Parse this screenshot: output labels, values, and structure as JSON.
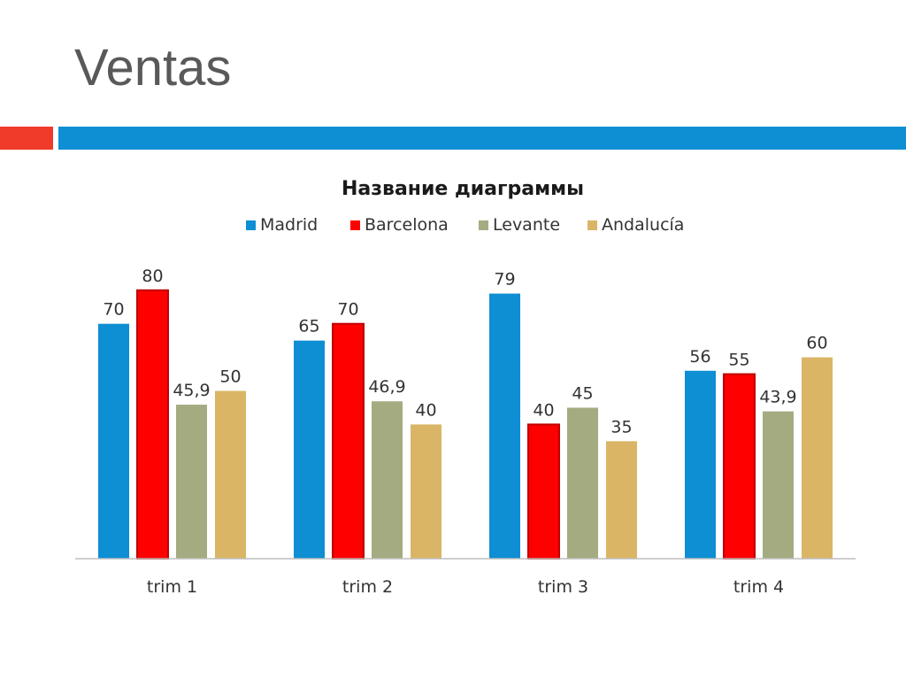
{
  "slide": {
    "title": "Ventas",
    "accent_colors": {
      "red": "#f03a2a",
      "blue": "#0e8ed3"
    }
  },
  "chart_data": {
    "type": "bar",
    "title": "Название диаграммы",
    "legend_position": "top",
    "categories": [
      "trim 1",
      "trim 2",
      "trim 3",
      "trim 4"
    ],
    "series": [
      {
        "name": "Madrid",
        "color": "#0e8ed3",
        "values": [
          70,
          65,
          79,
          56
        ],
        "labels": [
          "70",
          "65",
          "79",
          "56"
        ]
      },
      {
        "name": "Barcelona",
        "color": "#ff0000",
        "values": [
          80,
          70,
          40,
          55
        ],
        "labels": [
          "80",
          "70",
          "40",
          "55"
        ]
      },
      {
        "name": "Levante",
        "color": "#a5ab81",
        "values": [
          45.9,
          46.9,
          45,
          43.9
        ],
        "labels": [
          "45,9",
          "46,9",
          "45",
          "43,9"
        ]
      },
      {
        "name": "Andalucía",
        "color": "#d9b565",
        "values": [
          50,
          40,
          35,
          60
        ],
        "labels": [
          "50",
          "40",
          "35",
          "60"
        ]
      }
    ],
    "ylim": [
      0,
      85
    ],
    "grid": false
  }
}
